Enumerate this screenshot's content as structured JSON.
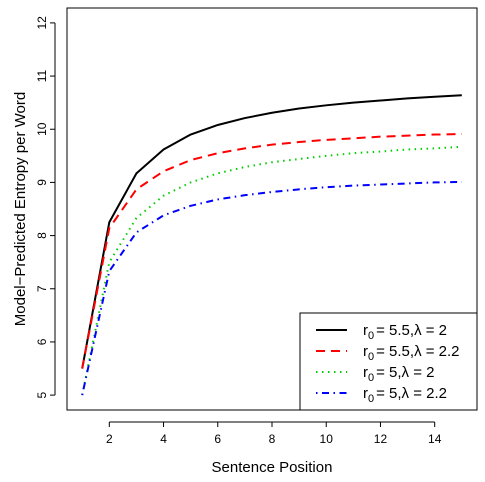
{
  "chart_data": {
    "type": "line",
    "title": "",
    "xlabel": "Sentence Position",
    "ylabel": "Model−Predicted Entropy per Word",
    "xlim": [
      0.44,
      15.56
    ],
    "ylim": [
      4.72,
      12.28
    ],
    "xticks": [
      2,
      4,
      6,
      8,
      10,
      12,
      14
    ],
    "yticks": [
      5,
      6,
      7,
      8,
      9,
      10,
      11,
      12
    ],
    "grid": false,
    "legend_position": "bottom-right",
    "x": [
      1,
      2,
      3,
      4,
      5,
      6,
      7,
      8,
      9,
      10,
      11,
      12,
      13,
      14,
      15
    ],
    "series": [
      {
        "label_sub": "0",
        "label_tail": "= 5.5,λ = 2",
        "color": "#000000",
        "line_style": "solid",
        "values": [
          5.5,
          8.25,
          9.17,
          9.62,
          9.9,
          10.08,
          10.21,
          10.31,
          10.39,
          10.45,
          10.5,
          10.54,
          10.58,
          10.61,
          10.64
        ]
      },
      {
        "label_sub": "0",
        "label_tail": "= 5.5,λ = 2.2",
        "color": "#ff0000",
        "line_style": "dashed",
        "values": [
          5.5,
          8.14,
          8.87,
          9.21,
          9.42,
          9.55,
          9.64,
          9.71,
          9.76,
          9.8,
          9.83,
          9.86,
          9.88,
          9.9,
          9.91
        ]
      },
      {
        "label_sub": "0",
        "label_tail": "= 5,λ = 2",
        "color": "#00cd00",
        "line_style": "dotted",
        "values": [
          5.0,
          7.5,
          8.33,
          8.75,
          9.0,
          9.17,
          9.29,
          9.38,
          9.44,
          9.5,
          9.55,
          9.58,
          9.62,
          9.64,
          9.67
        ]
      },
      {
        "label_sub": "0",
        "label_tail": "= 5,λ = 2.2",
        "color": "#0000ff",
        "line_style": "dotdash",
        "values": [
          5.0,
          7.33,
          8.06,
          8.38,
          8.56,
          8.68,
          8.76,
          8.82,
          8.87,
          8.91,
          8.94,
          8.96,
          8.98,
          9.0,
          9.01
        ]
      }
    ]
  }
}
